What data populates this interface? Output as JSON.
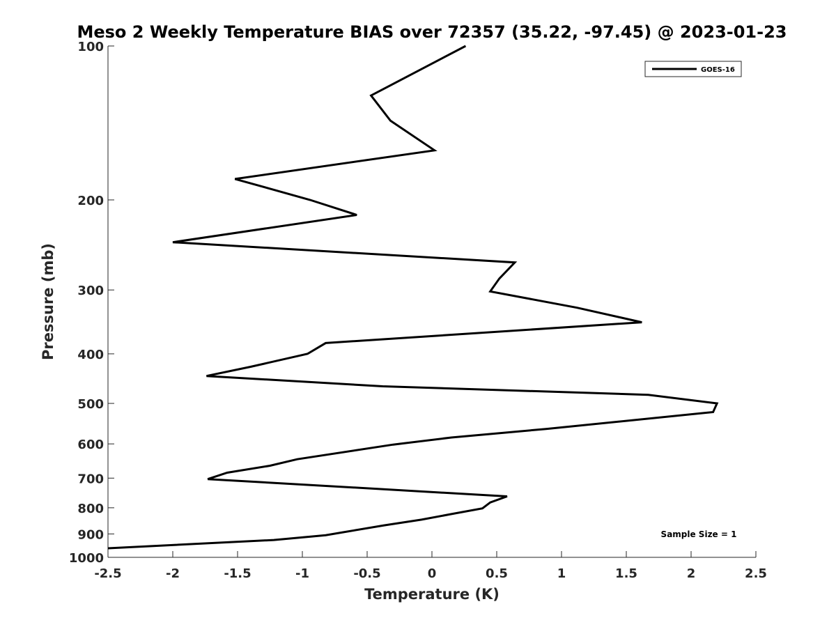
{
  "chart_data": {
    "type": "line",
    "title": "Meso 2 Weekly Temperature BIAS over 72357 (35.22, -97.45) @ 2023-01-23",
    "xlabel": "Temperature (K)",
    "ylabel": "Pressure (mb)",
    "xlim": [
      -2.5,
      2.5
    ],
    "ylim": [
      100,
      1000
    ],
    "y_scale": "log",
    "y_reversed": true,
    "grid": false,
    "x_ticks": [
      -2.5,
      -2,
      -1.5,
      -1,
      -0.5,
      0,
      0.5,
      1,
      1.5,
      2,
      2.5
    ],
    "x_tick_labels": [
      "-2.5",
      "-2",
      "-1.5",
      "-1",
      "-0.5",
      "0",
      "0.5",
      "1",
      "1.5",
      "2",
      "2.5"
    ],
    "y_ticks": [
      100,
      200,
      300,
      400,
      500,
      600,
      700,
      800,
      900,
      1000
    ],
    "y_tick_labels": [
      "100",
      "200",
      "300",
      "400",
      "500",
      "600",
      "700",
      "800",
      "900",
      "1000"
    ],
    "legend_position": "top-right",
    "annotation": "Sample Size = 1",
    "line_color": "#000000",
    "series": [
      {
        "name": "GOES-16",
        "points": [
          [
            0.26,
            100
          ],
          [
            -0.47,
            125
          ],
          [
            -0.32,
            140
          ],
          [
            0.02,
            160
          ],
          [
            -1.52,
            182
          ],
          [
            -0.94,
            200
          ],
          [
            -0.58,
            214
          ],
          [
            -2.0,
            242
          ],
          [
            0.64,
            265
          ],
          [
            0.52,
            285
          ],
          [
            0.45,
            302
          ],
          [
            1.12,
            325
          ],
          [
            1.62,
            347
          ],
          [
            -0.82,
            381
          ],
          [
            -0.96,
            400
          ],
          [
            -1.4,
            424
          ],
          [
            -1.74,
            442
          ],
          [
            -0.38,
            463
          ],
          [
            1.67,
            481
          ],
          [
            2.2,
            500
          ],
          [
            2.17,
            520
          ],
          [
            0.88,
            561
          ],
          [
            0.15,
            583
          ],
          [
            -0.3,
            602
          ],
          [
            -1.04,
            643
          ],
          [
            -1.25,
            662
          ],
          [
            -1.58,
            683
          ],
          [
            -1.73,
            703
          ],
          [
            0.58,
            760
          ],
          [
            0.45,
            781
          ],
          [
            0.39,
            802
          ],
          [
            0.15,
            823
          ],
          [
            -0.08,
            844
          ],
          [
            -0.37,
            866
          ],
          [
            -0.82,
            905
          ],
          [
            -1.22,
            925
          ],
          [
            -2.5,
            960
          ]
        ]
      }
    ]
  }
}
